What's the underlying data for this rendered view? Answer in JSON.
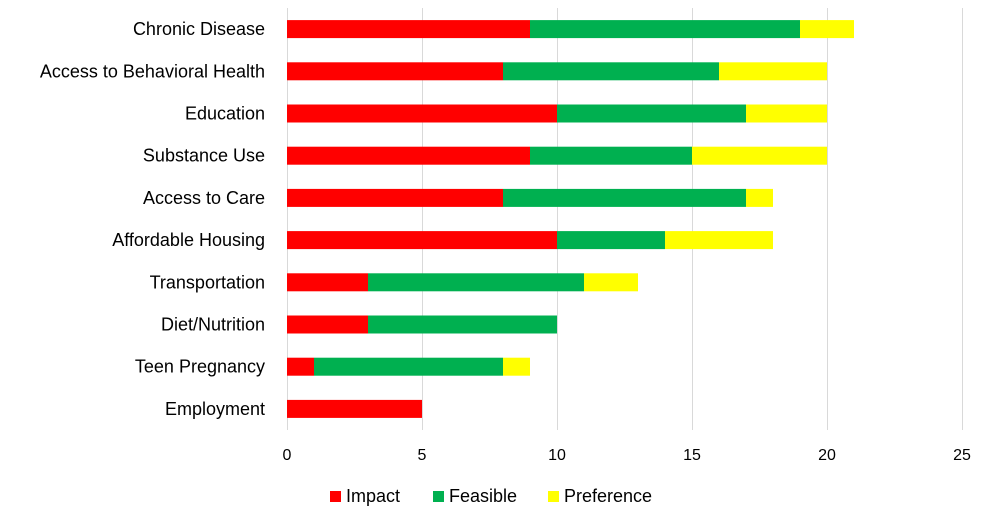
{
  "chart_data": {
    "type": "bar",
    "orientation": "horizontal",
    "stacked": true,
    "categories": [
      "Chronic Disease",
      "Access to Behavioral Health",
      "Education",
      "Substance Use",
      "Access to Care",
      "Affordable Housing",
      "Transportation",
      "Diet/Nutrition",
      "Teen Pregnancy",
      "Employment"
    ],
    "series": [
      {
        "name": "Impact",
        "color": "#ff0000",
        "values": [
          9,
          8,
          10,
          9,
          8,
          10,
          3,
          3,
          1,
          5
        ]
      },
      {
        "name": "Feasible",
        "color": "#00b050",
        "values": [
          10,
          8,
          7,
          6,
          9,
          4,
          8,
          7,
          7,
          0
        ]
      },
      {
        "name": "Preference",
        "color": "#ffff00",
        "values": [
          2,
          4,
          3,
          5,
          1,
          4,
          2,
          0,
          1,
          0
        ]
      }
    ],
    "xlim": [
      0,
      25
    ],
    "xticks": [
      0,
      5,
      10,
      15,
      20,
      25
    ],
    "grid": true,
    "legend_position": "bottom",
    "title": "",
    "xlabel": "",
    "ylabel": ""
  }
}
